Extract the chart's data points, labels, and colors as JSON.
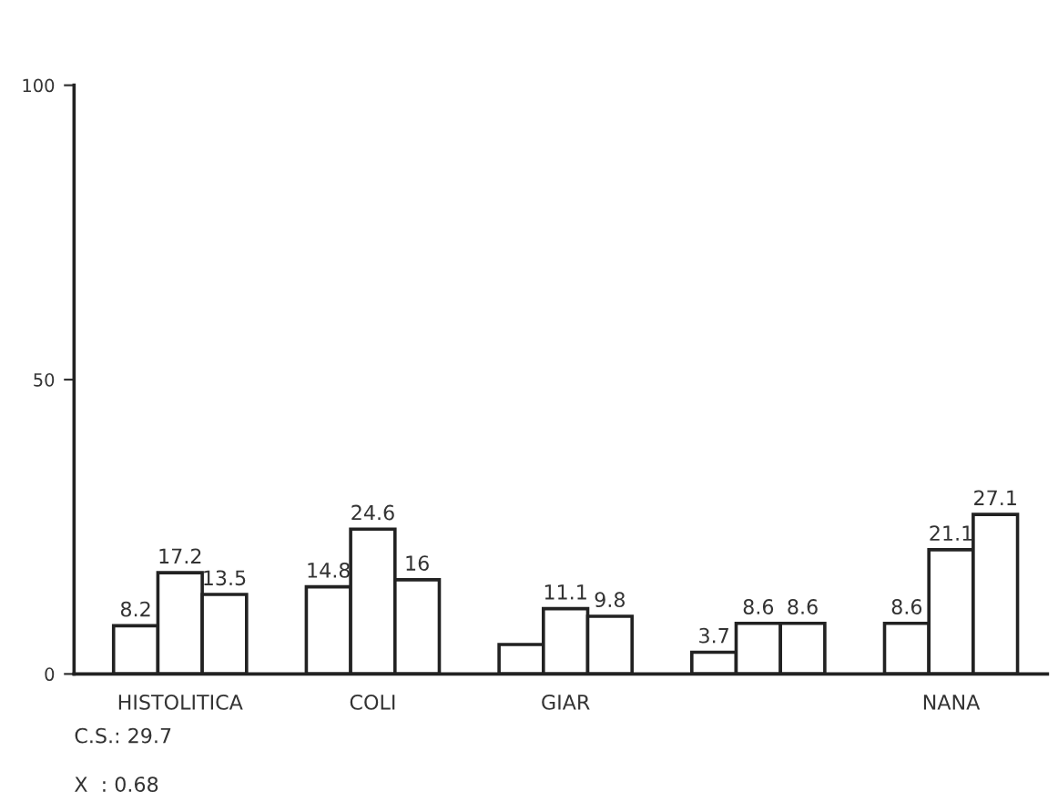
{
  "chart_data": {
    "type": "bar",
    "categories": [
      "HISTOLITICA",
      "COLI",
      "GIAR",
      null,
      "NANA"
    ],
    "series": [
      {
        "color": "#ffffff",
        "values": [
          8.2,
          14.8,
          5,
          3.7,
          8.6
        ],
        "value_labels": [
          "8.2",
          "14.8",
          null,
          "3.7",
          "8.6"
        ]
      },
      {
        "color": "#ffffff",
        "values": [
          17.2,
          24.6,
          11.1,
          8.6,
          21.1
        ],
        "value_labels": [
          "17.2",
          "24.6",
          "11.1",
          "8.6",
          "21.1"
        ]
      },
      {
        "color": "#ffffff",
        "values": [
          13.5,
          16,
          9.8,
          8.6,
          27.1
        ],
        "value_labels": [
          "13.5",
          "16",
          "9.8",
          "8.6",
          "27.1"
        ]
      }
    ],
    "ylim": [
      0,
      100
    ],
    "yticks": [
      0,
      50,
      100
    ],
    "grid": false,
    "legend": false,
    "annotations": [
      "C.S.: 29.7",
      "X  : 0.68"
    ]
  }
}
